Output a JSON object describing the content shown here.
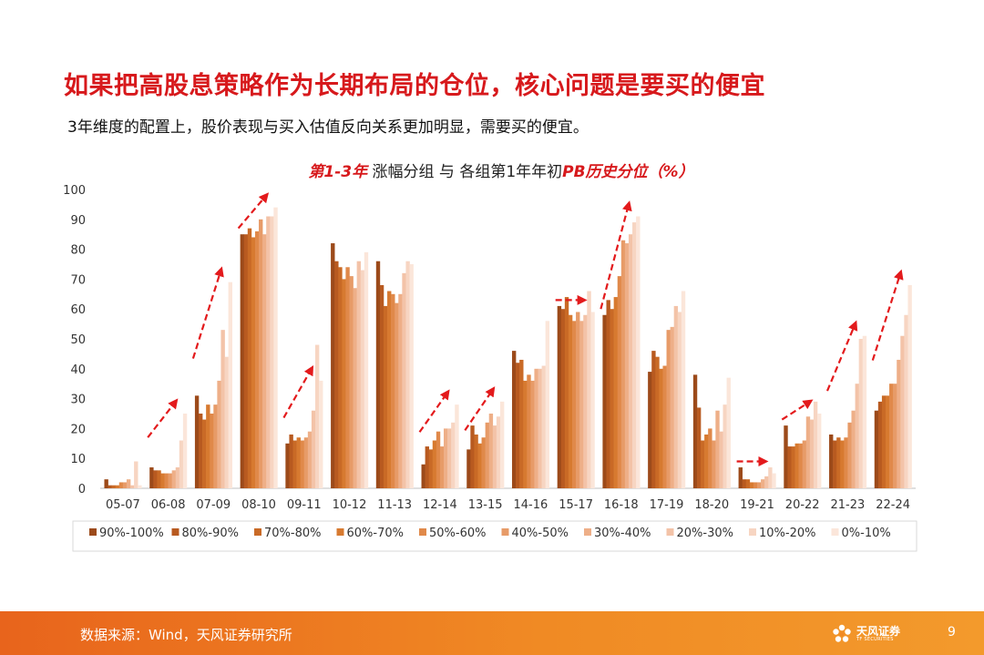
{
  "header": {
    "headline": "如果把高股息策略作为长期布局的仓位，核心问题是要买的便宜",
    "subtitle": "3年维度的配置上，股价表现与买入估值反向关系更加明显，需要买的便宜。"
  },
  "footer": {
    "source": "数据来源：Wind，天风证券研究所",
    "logo_text": "天风证券",
    "logo_sub": "TF SECURITIES",
    "page_number": "9"
  },
  "colors": {
    "title_red": "#d7191c",
    "arrow_red": "#e31a1c",
    "series": [
      "#9c4a1a",
      "#b85a20",
      "#c96a26",
      "#d77a30",
      "#e0894a",
      "#e79b68",
      "#eeaf88",
      "#f3c3a8",
      "#f7d5c2",
      "#fbe6da"
    ]
  },
  "chart_data": {
    "type": "bar",
    "title_parts": [
      {
        "text": "第1-3年",
        "emph": true
      },
      {
        "text": " 涨幅分组  与  各组第1年年初",
        "emph": false
      },
      {
        "text": "PB历史分位（%）",
        "emph": true
      }
    ],
    "categories": [
      "05-07",
      "06-08",
      "07-09",
      "08-10",
      "09-11",
      "10-12",
      "11-13",
      "12-14",
      "13-15",
      "14-16",
      "15-17",
      "16-18",
      "17-19",
      "18-20",
      "19-21",
      "20-22",
      "21-23",
      "22-24"
    ],
    "y_ticks": [
      "0",
      "10",
      "20",
      "30",
      "40",
      "50",
      "60",
      "70",
      "80",
      "90",
      "100"
    ],
    "ylim": [
      0,
      100
    ],
    "legend_position": "bottom",
    "series": [
      {
        "name": "90%-100%",
        "values": [
          3,
          7,
          31,
          85,
          15,
          82,
          76,
          8,
          13,
          46,
          61,
          58,
          39,
          38,
          7,
          21,
          18,
          26
        ]
      },
      {
        "name": "80%-90%",
        "values": [
          1,
          6,
          25,
          85,
          18,
          76,
          68,
          14,
          21,
          42,
          60,
          63,
          46,
          27,
          3,
          14,
          16,
          29
        ]
      },
      {
        "name": "70%-80%",
        "values": [
          1,
          6,
          23,
          87,
          16,
          74,
          61,
          13,
          18,
          43,
          64,
          60,
          44,
          16,
          3,
          14,
          17,
          31
        ]
      },
      {
        "name": "60%-70%",
        "values": [
          1,
          5,
          28,
          84,
          17,
          70,
          66,
          16,
          15,
          36,
          58,
          64,
          40,
          18,
          2,
          15,
          16,
          31
        ]
      },
      {
        "name": "50%-60%",
        "values": [
          2,
          5,
          25,
          86,
          16,
          74,
          65,
          19,
          17,
          38,
          56,
          71,
          41,
          20,
          2,
          15,
          17,
          35
        ]
      },
      {
        "name": "40%-50%",
        "values": [
          2,
          5,
          28,
          90,
          17,
          71,
          62,
          14,
          22,
          36,
          59,
          83,
          53,
          16,
          2,
          16,
          22,
          35
        ]
      },
      {
        "name": "30%-40%",
        "values": [
          3,
          6,
          36,
          85,
          19,
          67,
          65,
          20,
          25,
          40,
          56,
          82,
          54,
          26,
          3,
          24,
          26,
          43
        ]
      },
      {
        "name": "20%-30%",
        "values": [
          1,
          7,
          53,
          91,
          26,
          76,
          72,
          20,
          21,
          40,
          58,
          85,
          61,
          19,
          4,
          23,
          35,
          51
        ]
      },
      {
        "name": "10%-20%",
        "values": [
          9,
          16,
          44,
          91,
          48,
          73,
          76,
          22,
          24,
          41,
          66,
          89,
          59,
          28,
          7,
          29,
          50,
          58
        ]
      },
      {
        "name": "0%-10%",
        "values": [
          1,
          25,
          69,
          94,
          36,
          79,
          75,
          28,
          29,
          56,
          59,
          91,
          66,
          37,
          5,
          25,
          51,
          68
        ]
      }
    ]
  }
}
